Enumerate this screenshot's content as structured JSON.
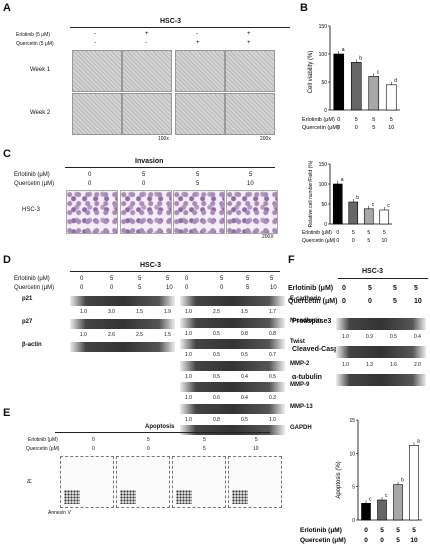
{
  "panels": {
    "A": "A",
    "B": "B",
    "C": "C",
    "D": "D",
    "E": "E",
    "F": "F"
  },
  "panel_a": {
    "title": "HSC-3",
    "row_labels": [
      "Erlotinib (5 μM)",
      "Quercetin (5 μM)"
    ],
    "erlotinib_marks": [
      "-",
      "+",
      "-",
      "+"
    ],
    "quercetin_marks": [
      "-",
      "-",
      "+",
      "+"
    ],
    "weeks": [
      "Week 1",
      "Week 2"
    ],
    "mag": [
      "100x",
      "200x"
    ]
  },
  "panel_c": {
    "title": "Invasion",
    "cell": "HSC-3",
    "row_labels": [
      "Erlotinib (μM)",
      "Quercetin (μM)"
    ],
    "erlotinib": [
      "0",
      "5",
      "5",
      "5"
    ],
    "quercetin": [
      "0",
      "0",
      "5",
      "10"
    ],
    "mag": "200X"
  },
  "panel_d": {
    "title": "HSC-3",
    "row_labels": [
      "Erlotinib (μM)",
      "Quercetin (μM)"
    ],
    "erlotinib": [
      "0",
      "5",
      "5",
      "5",
      "0",
      "5",
      "5",
      "5"
    ],
    "quercetin": [
      "0",
      "0",
      "5",
      "10",
      "0",
      "0",
      "5",
      "10"
    ],
    "left_blots": [
      {
        "name": "p21",
        "values": [
          "1.0",
          "3.0",
          "1.5",
          "1.9"
        ]
      },
      {
        "name": "p27",
        "values": [
          "1.0",
          "2.6",
          "2.5",
          "1.5"
        ]
      },
      {
        "name": "β-actin",
        "values": []
      }
    ],
    "right_blots": [
      {
        "name": "E-cadherin",
        "values": [
          "1.0",
          "2.5",
          "1.5",
          "1.7"
        ]
      },
      {
        "name": "N-cadherin",
        "values": [
          "1.0",
          "0.5",
          "0.8",
          "0.8"
        ]
      },
      {
        "name": "Twist",
        "values": [
          "1.0",
          "0.5",
          "0.5",
          "0.7"
        ]
      },
      {
        "name": "MMP-2",
        "values": [
          "1.0",
          "0.5",
          "0.4",
          "0.5"
        ]
      },
      {
        "name": "MMP-9",
        "values": [
          "1.0",
          "0.6",
          "0.4",
          "0.3"
        ]
      },
      {
        "name": "MMP-13",
        "values": [
          "1.0",
          "0.8",
          "0.5",
          "1.0"
        ]
      },
      {
        "name": "GAPDH",
        "values": []
      }
    ]
  },
  "panel_e": {
    "title": "Apoptosis",
    "row_labels": [
      "Erlotinib (μM)",
      "Quercetin (μM)"
    ],
    "erlotinib": [
      "0",
      "5",
      "5",
      "5"
    ],
    "quercetin": [
      "0",
      "0",
      "5",
      "10"
    ],
    "xaxis": "Annexin V",
    "yaxis": "PI"
  },
  "panel_f": {
    "title": "HSC-3",
    "row_labels": [
      "Erlotinib (μM)",
      "Quercetin (μM)"
    ],
    "erlotinib": [
      "0",
      "5",
      "5",
      "5"
    ],
    "quercetin": [
      "0",
      "0",
      "5",
      "10"
    ],
    "blots": [
      {
        "name": "Proaspase3",
        "values": [
          "1.0",
          "0.9",
          "0.5",
          "0.4"
        ]
      },
      {
        "name": "Cleaved-Caspase3",
        "values": [
          "1.0",
          "1.3",
          "1.6",
          "2.0"
        ]
      },
      {
        "name": "α-tubulin",
        "values": []
      }
    ]
  },
  "chart_data": [
    {
      "type": "bar",
      "panel": "B",
      "ylabel": "Cell viability (%)",
      "ylim": [
        0,
        150
      ],
      "yticks": [
        0,
        50,
        100,
        150
      ],
      "categories": [
        "1",
        "2",
        "3",
        "4"
      ],
      "erlotinib": [
        "0",
        "5",
        "5",
        "5"
      ],
      "quercetin": [
        "0",
        "0",
        "5",
        "10"
      ],
      "values": [
        100,
        85,
        60,
        45
      ],
      "sig": [
        "a",
        "b",
        "c",
        "d"
      ],
      "colors": [
        "#000000",
        "#666666",
        "#a8a8a8",
        "#ffffff"
      ]
    },
    {
      "type": "bar",
      "panel": "C",
      "ylabel": "Relative cell number/Field (%)",
      "ylim": [
        0,
        150
      ],
      "yticks": [
        0,
        50,
        100,
        150
      ],
      "categories": [
        "1",
        "2",
        "3",
        "4"
      ],
      "erlotinib": [
        "0",
        "5",
        "5",
        "5"
      ],
      "quercetin": [
        "0",
        "0",
        "5",
        "10"
      ],
      "values": [
        100,
        55,
        38,
        35
      ],
      "sig": [
        "a",
        "b",
        "c",
        "c"
      ],
      "colors": [
        "#000000",
        "#666666",
        "#a8a8a8",
        "#ffffff"
      ]
    },
    {
      "type": "bar",
      "panel": "E",
      "ylabel": "Apoptosis (%)",
      "ylim": [
        0,
        15
      ],
      "yticks": [
        0,
        5,
        10,
        15
      ],
      "categories": [
        "1",
        "2",
        "3",
        "4"
      ],
      "erlotinib": [
        "0",
        "5",
        "5",
        "5"
      ],
      "quercetin": [
        "0",
        "0",
        "5",
        "10"
      ],
      "values": [
        2.5,
        3.0,
        5.3,
        11.2
      ],
      "sig": [
        "c",
        "c",
        "b",
        "a"
      ],
      "colors": [
        "#000000",
        "#666666",
        "#a8a8a8",
        "#ffffff"
      ]
    }
  ]
}
